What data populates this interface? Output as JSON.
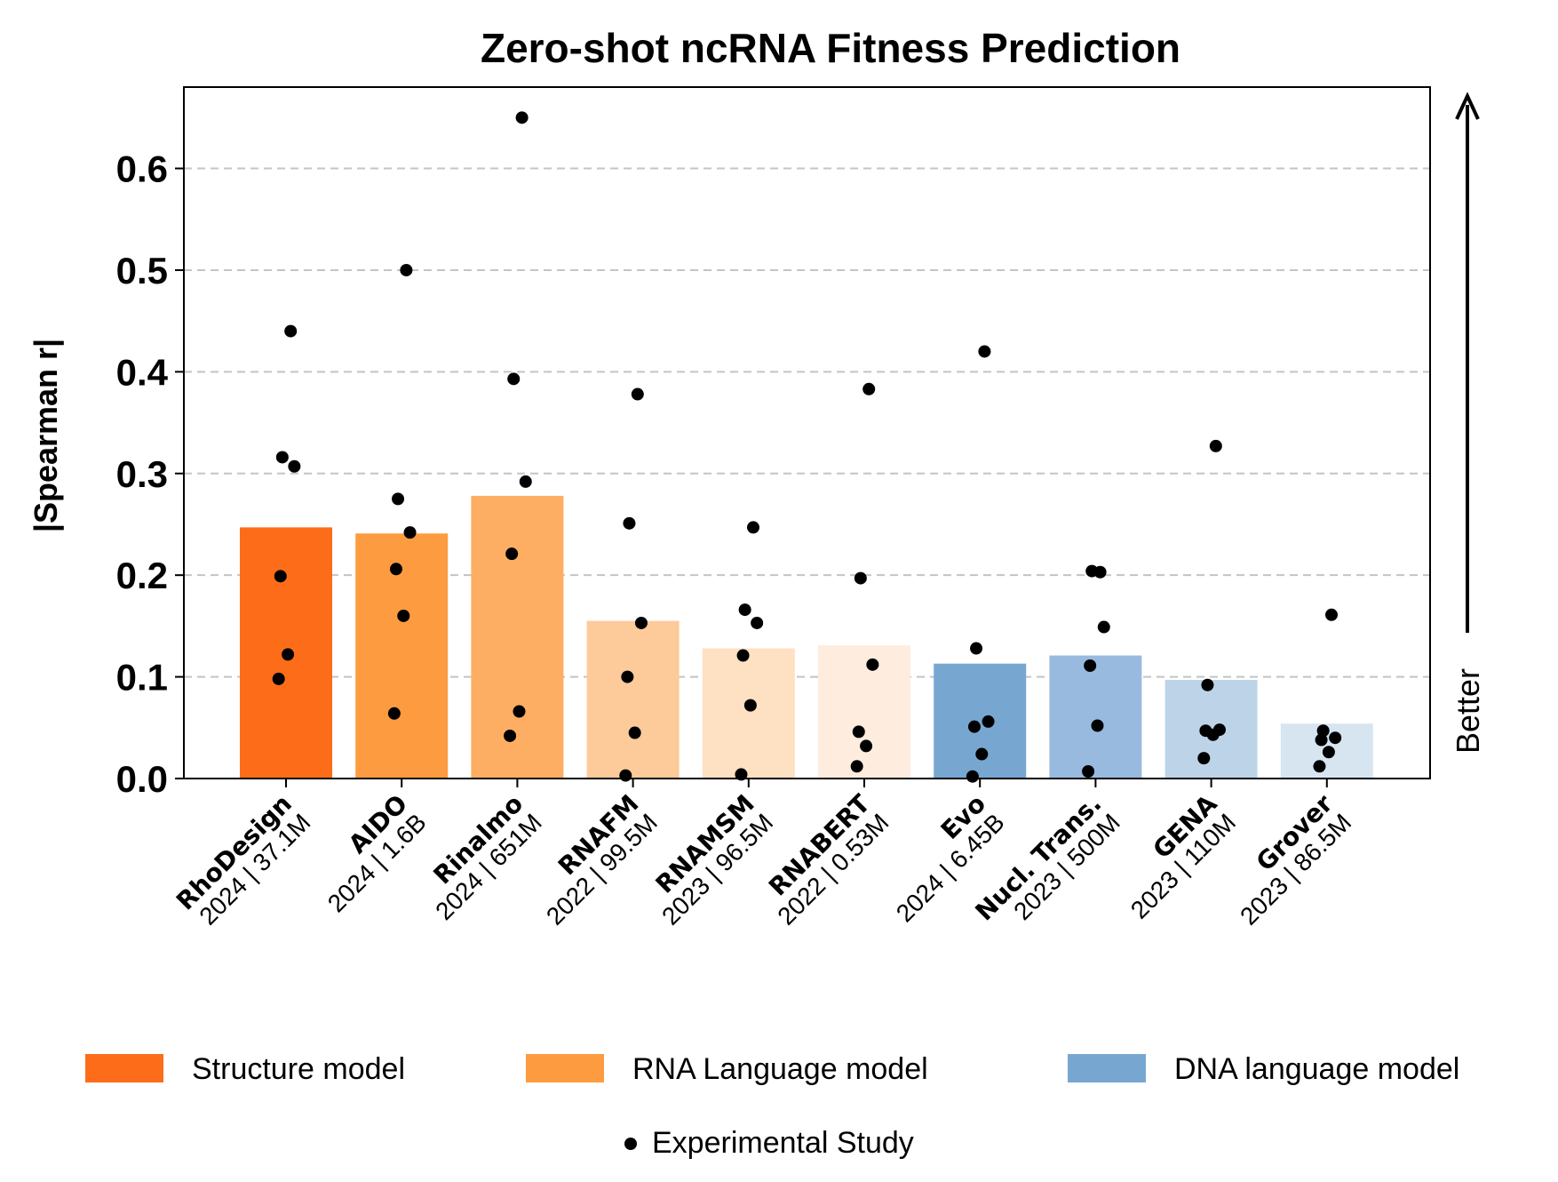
{
  "chart_data": {
    "type": "bar",
    "title": "Zero-shot ncRNA Fitness Prediction",
    "ylabel": "|Spearman r|",
    "xlabel": "",
    "ylim": [
      0,
      0.68
    ],
    "yticks": [
      "0.0",
      "0.1",
      "0.2",
      "0.3",
      "0.4",
      "0.5",
      "0.6"
    ],
    "grid": "horizontal dashed",
    "annotation": "Better",
    "categories": [
      {
        "name": "RhoDesign",
        "meta": "2024 | 37.1M",
        "group": "Structure model",
        "value": 0.247,
        "color": "#fd6d19",
        "points": [
          0.44,
          0.316,
          0.307,
          0.199,
          0.122,
          0.098
        ]
      },
      {
        "name": "AIDO",
        "meta": "2024 | 1.6B",
        "group": "RNA Language model",
        "value": 0.241,
        "color": "#fd9b40",
        "points": [
          0.5,
          0.275,
          0.242,
          0.206,
          0.16,
          0.064
        ]
      },
      {
        "name": "Rinalmo",
        "meta": "2024 | 651M",
        "group": "RNA Language model",
        "value": 0.278,
        "color": "#fdae62",
        "points": [
          0.65,
          0.393,
          0.292,
          0.221,
          0.066,
          0.042
        ]
      },
      {
        "name": "RNAFM",
        "meta": "2022 | 99.5M",
        "group": "RNA Language model",
        "value": 0.155,
        "color": "#fdca9a",
        "points": [
          0.378,
          0.251,
          0.153,
          0.1,
          0.045,
          0.003
        ]
      },
      {
        "name": "RNAMSM",
        "meta": "2023 | 96.5M",
        "group": "RNA Language model",
        "value": 0.128,
        "color": "#fee0c3",
        "points": [
          0.247,
          0.166,
          0.153,
          0.121,
          0.072,
          0.004
        ]
      },
      {
        "name": "RNABERT",
        "meta": "2022 | 0.53M",
        "group": "RNA Language model",
        "value": 0.131,
        "color": "#feedde",
        "points": [
          0.383,
          0.197,
          0.112,
          0.046,
          0.032,
          0.012
        ]
      },
      {
        "name": "Evo",
        "meta": "2024 | 6.45B",
        "group": "DNA language model",
        "value": 0.113,
        "color": "#77a7d1",
        "points": [
          0.42,
          0.128,
          0.056,
          0.051,
          0.024,
          0.002
        ]
      },
      {
        "name": "Nucl. Trans.",
        "meta": "2023 | 500M",
        "group": "DNA language model",
        "value": 0.121,
        "color": "#99badf",
        "points": [
          0.203,
          0.204,
          0.149,
          0.111,
          0.052,
          0.007
        ]
      },
      {
        "name": "GENA",
        "meta": "2023 | 110M",
        "group": "DNA language model",
        "value": 0.097,
        "color": "#bdd4e8",
        "points": [
          0.327,
          0.092,
          0.048,
          0.047,
          0.043,
          0.02
        ]
      },
      {
        "name": "Grover",
        "meta": "2023 | 86.5M",
        "group": "DNA language model",
        "value": 0.054,
        "color": "#d7e5f1",
        "points": [
          0.161,
          0.047,
          0.04,
          0.038,
          0.026,
          0.012
        ]
      }
    ],
    "legend": {
      "placement": "bottom",
      "entries": [
        {
          "label": "Structure model",
          "color": "#fd6d19",
          "marker": "patch"
        },
        {
          "label": "RNA Language model",
          "color": "#fd9b40",
          "marker": "patch"
        },
        {
          "label": "DNA language model",
          "color": "#77a7d1",
          "marker": "patch"
        },
        {
          "label": "Experimental Study",
          "color": "#000000",
          "marker": "dot"
        }
      ]
    }
  }
}
